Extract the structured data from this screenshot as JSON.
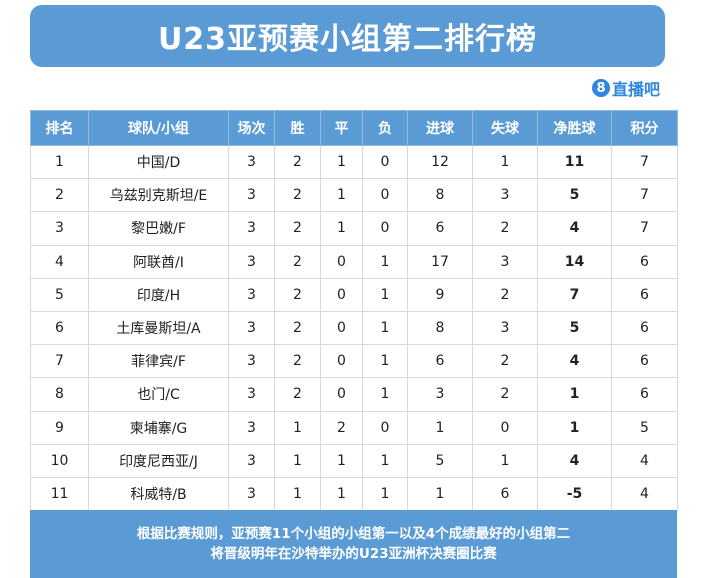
{
  "title": "U23亚预赛小组第二排行榜",
  "logo": {
    "mark": "8",
    "text": "直播吧"
  },
  "table": {
    "headers": [
      "排名",
      "球队/小组",
      "场次",
      "胜",
      "平",
      "负",
      "进球",
      "失球",
      "净胜球",
      "积分"
    ],
    "rows": [
      [
        "1",
        "中国/D",
        "3",
        "2",
        "1",
        "0",
        "12",
        "1",
        "11",
        "7"
      ],
      [
        "2",
        "乌兹别克斯坦/E",
        "3",
        "2",
        "1",
        "0",
        "8",
        "3",
        "5",
        "7"
      ],
      [
        "3",
        "黎巴嫩/F",
        "3",
        "2",
        "1",
        "0",
        "6",
        "2",
        "4",
        "7"
      ],
      [
        "4",
        "阿联酋/I",
        "3",
        "2",
        "0",
        "1",
        "17",
        "3",
        "14",
        "6"
      ],
      [
        "5",
        "印度/H",
        "3",
        "2",
        "0",
        "1",
        "9",
        "2",
        "7",
        "6"
      ],
      [
        "6",
        "土库曼斯坦/A",
        "3",
        "2",
        "0",
        "1",
        "8",
        "3",
        "5",
        "6"
      ],
      [
        "7",
        "菲律宾/F",
        "3",
        "2",
        "0",
        "1",
        "6",
        "2",
        "4",
        "6"
      ],
      [
        "8",
        "也门/C",
        "3",
        "2",
        "0",
        "1",
        "3",
        "2",
        "1",
        "6"
      ],
      [
        "9",
        "柬埔寨/G",
        "3",
        "1",
        "2",
        "0",
        "1",
        "0",
        "1",
        "5"
      ],
      [
        "10",
        "印度尼西亚/J",
        "3",
        "1",
        "1",
        "1",
        "5",
        "1",
        "4",
        "4"
      ],
      [
        "11",
        "科威特/B",
        "3",
        "1",
        "1",
        "1",
        "1",
        "6",
        "-5",
        "4"
      ]
    ]
  },
  "footer": {
    "line1": "根据比赛规则，亚预赛11个小组的小组第一以及4个成绩最好的小组第二",
    "line2": "将晋级明年在沙特举办的U23亚洲杯决赛圈比赛"
  },
  "colors": {
    "accent": "#5b9bd5",
    "logo": "#2e86de"
  }
}
